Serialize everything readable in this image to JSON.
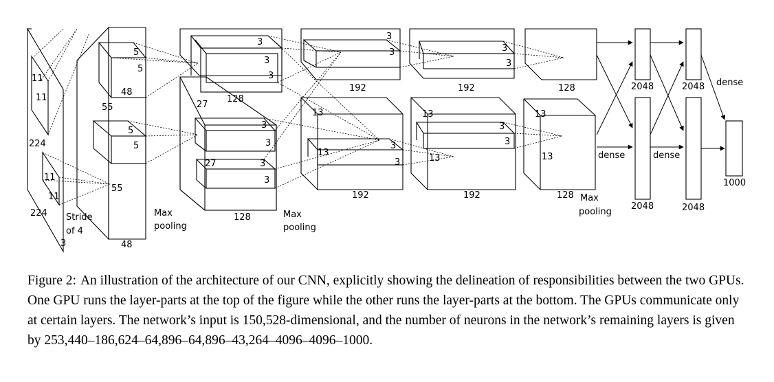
{
  "figure": {
    "labels": {
      "in_k1": "11",
      "in_k2": "11",
      "in_size1": "224",
      "in_k3": "11",
      "in_k4": "11",
      "in_size2": "224",
      "stride1": "Stride",
      "stride2": "of 4",
      "in_depth": "3",
      "c1_top_k1": "5",
      "c1_top_k2": "5",
      "c1_top_depth": "48",
      "c1_size_top": "55",
      "c1_bot_k1": "5",
      "c1_bot_k2": "5",
      "c1_size_bot": "55",
      "c1_bot_depth": "48",
      "pool1a": "Max",
      "pool1b": "pooling",
      "c2_top_k1": "3",
      "c2_top_k2": "3",
      "c2_top_k3": "3",
      "c2_top_depth": "128",
      "c2_size_top": "27",
      "c2_bot_k1": "3",
      "c2_bot_k2": "3",
      "c2_size_bot": "27",
      "c2_bot_k3": "3",
      "c2_bot_k4": "3",
      "c2_bot_depth": "128",
      "pool2a": "Max",
      "pool2b": "pooling",
      "c3_top_k1": "3",
      "c3_top_k2": "3",
      "c3_top_depth": "192",
      "c3_size_bot": "13",
      "c3_size_bot2": "13",
      "c3_bot_k1": "3",
      "c3_bot_k2": "3",
      "c3_bot_depth": "192",
      "c4_top_k1": "3",
      "c4_top_k2": "3",
      "c4_top_depth": "192",
      "c4_size_bot": "13",
      "c4_bot_k1": "3",
      "c4_size_bot2": "13",
      "c4_bot_k2": "3",
      "c4_bot_depth": "192",
      "c5_top_depth": "128",
      "c5_size_bot": "13",
      "c5_size_bot2": "13",
      "c5_bot_depth": "128",
      "pool3a": "Max",
      "pool3b": "pooling",
      "fc1_top": "2048",
      "fc2_top": "2048",
      "dense_top": "dense",
      "dense_a": "dense",
      "dense_b": "dense",
      "fc1_bot": "2048",
      "fc2_bot": "2048",
      "out": "1000"
    }
  },
  "caption": {
    "label": "Figure 2:",
    "text": "An illustration of the architecture of our CNN, explicitly showing the delineation of responsibilities between the two GPUs. One GPU runs the layer-parts at the top of the figure while the other runs the layer-parts at the bottom. The GPUs communicate only at certain layers. The network’s input is 150,528-dimensional, and the number of neurons in the network’s remaining layers is given by 253,440–186,624–64,896–64,896–43,264–4096–4096–1000."
  }
}
